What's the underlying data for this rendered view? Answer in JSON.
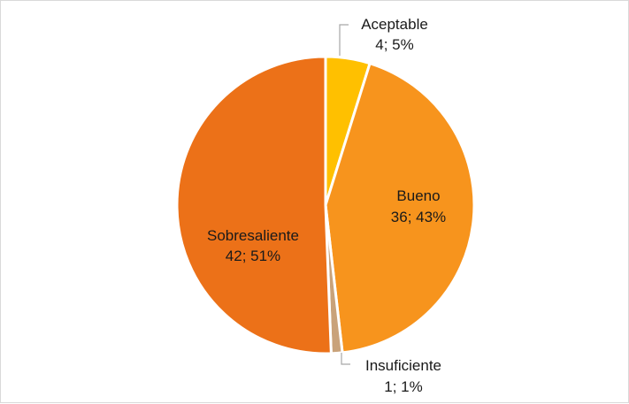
{
  "chart_data": {
    "type": "pie",
    "title": "",
    "slices": [
      {
        "name": "Aceptable",
        "value": 4,
        "percent": "5%",
        "color": "#ffc000"
      },
      {
        "name": "Bueno",
        "value": 36,
        "percent": "43%",
        "color": "#f7941d"
      },
      {
        "name": "Insuficiente",
        "value": 1,
        "percent": "1%",
        "color": "#c9a27a"
      },
      {
        "name": "Sobresaliente",
        "value": 42,
        "percent": "51%",
        "color": "#ec7118"
      }
    ],
    "labels": {
      "aceptable": {
        "name": "Aceptable",
        "value_text": "4; 5%"
      },
      "bueno": {
        "name": "Bueno",
        "value_text": "36; 43%"
      },
      "insuficiente": {
        "name": "Insuficiente",
        "value_text": "1; 1%"
      },
      "sobresaliente": {
        "name": "Sobresaliente",
        "value_text": "42; 51%"
      }
    },
    "legend": "none",
    "border_color": "#d9d9d9",
    "leader_line_color": "#a6a6a6"
  }
}
